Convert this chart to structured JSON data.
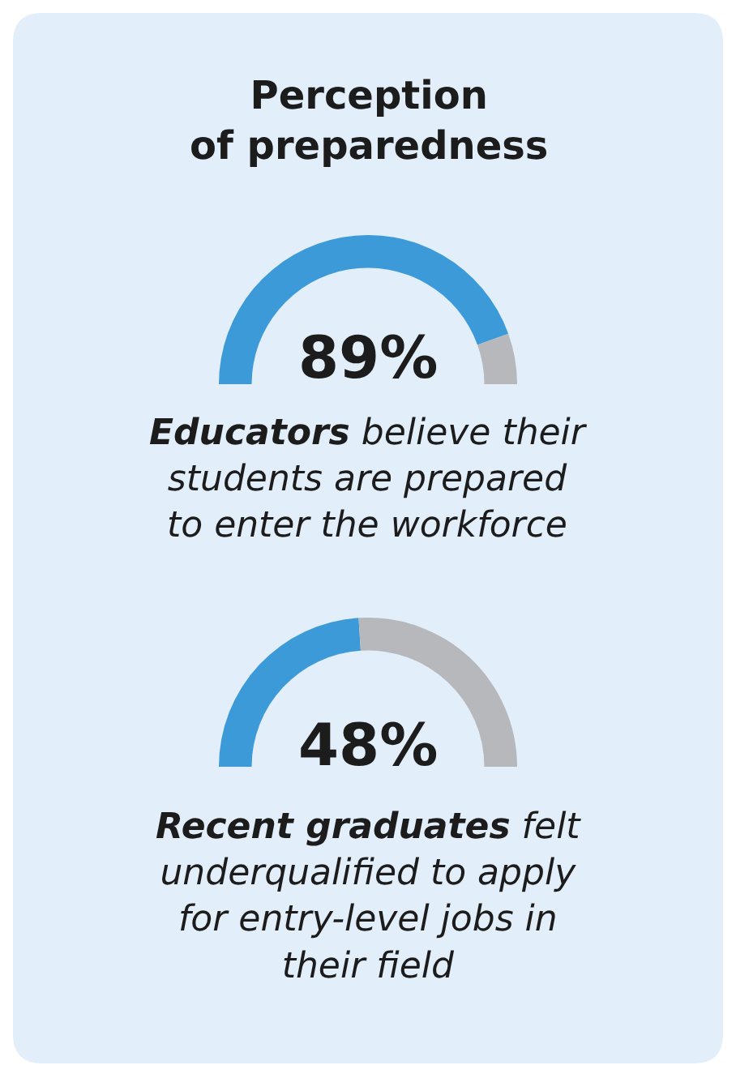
{
  "chart_data": [
    {
      "type": "donut",
      "title": "Perception of preparedness",
      "categories": [
        null,
        null
      ],
      "values": [
        89,
        11
      ],
      "colors": [
        "#3d9ad9",
        "#b6b8bc"
      ],
      "value_labels": [
        "89%",
        null
      ],
      "annotations": [
        "Educators",
        "believe their students are prepared to enter the workforce"
      ],
      "legend": false
    },
    {
      "type": "donut",
      "categories": [
        null,
        null
      ],
      "values": [
        48,
        52
      ],
      "colors": [
        "#3d9ad9",
        "#b6b8bc"
      ],
      "value_labels": [
        "48%",
        null
      ],
      "annotations": [
        "Recent graduates",
        "felt underqualified to apply for entry-level jobs in their field"
      ],
      "legend": false
    }
  ]
}
